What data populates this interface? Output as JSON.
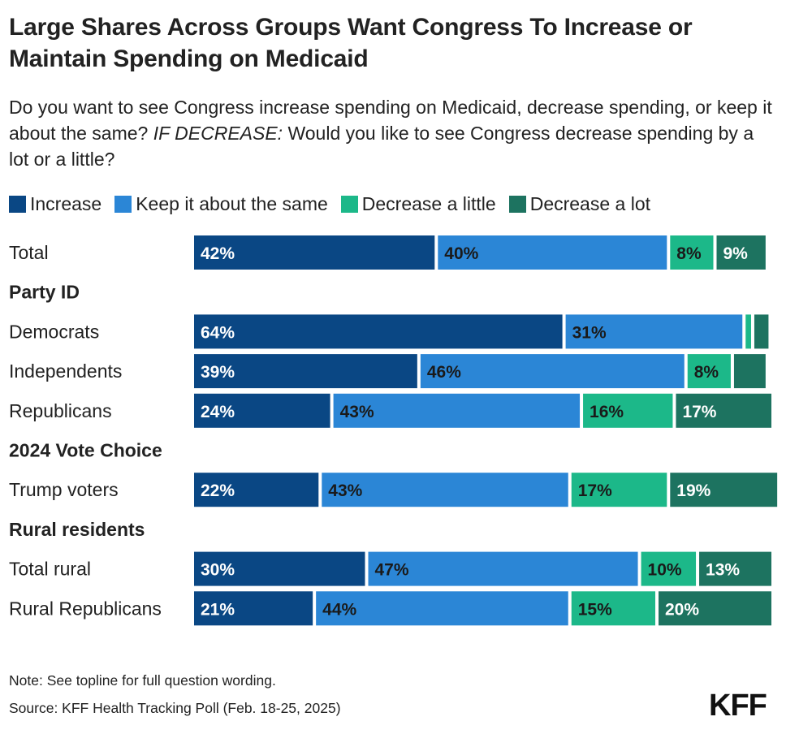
{
  "title": "Large Shares Across Groups Want Congress To Increase or Maintain Spending on Medicaid",
  "subtitle_part1": "Do you want to see Congress increase spending on Medicaid, decrease spending, or keep it about the same?",
  "subtitle_em": "IF DECREASE:",
  "subtitle_part2": "Would you like to see Congress decrease spending by a lot or a little?",
  "note": "Note: See topline for full question wording.",
  "source": "Source: KFF Health Tracking Poll (Feb. 18-25, 2025)",
  "logo": "KFF",
  "colors": {
    "increase": "#0a4784",
    "same": "#2b86d6",
    "decrease_little": "#1cb889",
    "decrease_lot": "#1d7360"
  },
  "chart_data": {
    "type": "bar",
    "orientation": "horizontal",
    "stacked": true,
    "xlim": [
      0,
      100
    ],
    "legend_placement": "top-left",
    "grid": false,
    "series": [
      {
        "name": "Increase",
        "color_key": "increase",
        "label_color": "#ffffff"
      },
      {
        "name": "Keep it about the same",
        "color_key": "same",
        "label_color": "#1a1a1a"
      },
      {
        "name": "Decrease a little",
        "color_key": "decrease_little",
        "label_color": "#1a1a1a"
      },
      {
        "name": "Decrease a lot",
        "color_key": "decrease_lot",
        "label_color": "#ffffff"
      }
    ],
    "rows": [
      {
        "kind": "bar",
        "label": "Total",
        "values": [
          42,
          40,
          8,
          9
        ],
        "labels": [
          "42%",
          "40%",
          "8%",
          "9%"
        ]
      },
      {
        "kind": "header",
        "label": "Party ID"
      },
      {
        "kind": "bar",
        "label": "Democrats",
        "values": [
          64,
          31,
          1.5,
          3
        ],
        "labels": [
          "64%",
          "31%",
          "",
          ""
        ]
      },
      {
        "kind": "bar",
        "label": "Independents",
        "values": [
          39,
          46,
          8,
          6
        ],
        "labels": [
          "39%",
          "46%",
          "8%",
          ""
        ]
      },
      {
        "kind": "bar",
        "label": "Republicans",
        "values": [
          24,
          43,
          16,
          17
        ],
        "labels": [
          "24%",
          "43%",
          "16%",
          "17%"
        ]
      },
      {
        "kind": "header",
        "label": "2024 Vote Choice"
      },
      {
        "kind": "bar",
        "label": "Trump voters",
        "values": [
          22,
          43,
          17,
          19
        ],
        "labels": [
          "22%",
          "43%",
          "17%",
          "19%"
        ]
      },
      {
        "kind": "header",
        "label": "Rural residents"
      },
      {
        "kind": "bar",
        "label": "Total rural",
        "values": [
          30,
          47,
          10,
          13
        ],
        "labels": [
          "30%",
          "47%",
          "10%",
          "13%"
        ]
      },
      {
        "kind": "bar",
        "label": "Rural Republicans",
        "values": [
          21,
          44,
          15,
          20
        ],
        "labels": [
          "21%",
          "44%",
          "15%",
          "20%"
        ]
      }
    ]
  }
}
